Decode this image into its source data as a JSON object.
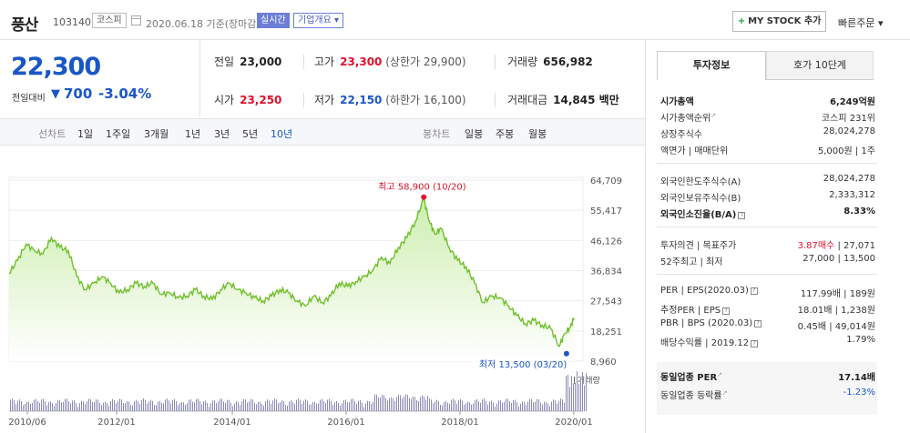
{
  "header": {
    "name": "풍산",
    "code": "103140",
    "market": "코스피",
    "date": "2020.06.18 기준(장마감)",
    "realtime": "실시간",
    "company_overview": "기업개요 ▾",
    "mystock": "MY STOCK 추가",
    "quick_order": "빠른주문 ▾"
  },
  "price": {
    "current": "22,300",
    "change_label": "전일대비",
    "change_arrow": "▼",
    "change": "700",
    "change_pct": "-3.04%"
  },
  "info": {
    "prev_label": "전일",
    "prev": "23,000",
    "high_label": "고가",
    "high": "23,300",
    "upper_limit": "(상한가 29,900)",
    "volume_label": "거래량",
    "volume": "656,982",
    "open_label": "시가",
    "open": "23,250",
    "low_label": "저가",
    "low": "22,150",
    "lower_limit": "(하한가 16,100)",
    "amount_label": "거래대금",
    "amount": "14,845 백만"
  },
  "period_bar": {
    "line_label": "선차트",
    "periods": [
      "1일",
      "1주일",
      "3개월",
      "1년",
      "3년",
      "5년",
      "10년"
    ],
    "active": "10년",
    "candle_label": "봉차트",
    "candles": [
      "일봉",
      "주봉",
      "월봉"
    ]
  },
  "side": {
    "tab_invest": "투자정보",
    "tab_orderbook": "호가 10단계",
    "rows1": [
      {
        "k": "시가총액",
        "v": "6,249억원"
      },
      {
        "k": "시가총액순위",
        "v": "코스피 231위"
      },
      {
        "k": "상장주식수",
        "v": "28,024,278"
      },
      {
        "k": "액면가 | 매매단위",
        "v": "5,000원 | 1주"
      }
    ],
    "rows2": [
      {
        "k": "외국인한도주식수(A)",
        "v": "28,024,278"
      },
      {
        "k": "외국인보유주식수(B)",
        "v": "2,333,312"
      },
      {
        "k": "외국인소진율(B/A)",
        "v": "8.33%"
      }
    ],
    "opinion_label": "투자의견 | 목표주가",
    "opinion_value": "3.87매수",
    "target_price": "| 27,071",
    "week52_label": "52주최고 | 최저",
    "week52_value": "27,000 | 13,500",
    "rows4": [
      {
        "k": "PER | EPS(2020.03)",
        "v": "117.99배 | 189원"
      },
      {
        "k": "추정PER | EPS",
        "v": "18.01배 | 1,238원"
      },
      {
        "k": "PBR | BPS (2020.03)",
        "v": "0.45배 | 49,014원"
      },
      {
        "k": "배당수익률 | 2019.12",
        "v": "1.79%"
      }
    ],
    "sector_per_label": "동일업종 PER",
    "sector_per": "17.14배",
    "sector_rate_label": "동일업종 등락률",
    "sector_rate": "-1.23%"
  },
  "chart_data": {
    "type": "area",
    "ylim": [
      8960,
      64709
    ],
    "yticks": [
      "64,709",
      "55,417",
      "46,126",
      "36,834",
      "27,543",
      "18,251",
      "8,960"
    ],
    "xticks": [
      "2010/06",
      "2012/01",
      "2014/01",
      "2016/01",
      "2018/01",
      "2020/01"
    ],
    "high_annotation": "최고 58,900 (10/20)",
    "low_annotation": "최저 13,500 (03/20)",
    "volume_label": "거래량",
    "colors": {
      "line": "#6fbf2a",
      "area_top": "#cdeeb0",
      "area_bottom": "#ffffff",
      "high": "#e0112b",
      "low": "#1a56c8",
      "volume": "#8b8bb8"
    },
    "series": [
      {
        "values": [
          [
            2010.45,
            36000
          ],
          [
            2010.6,
            40000
          ],
          [
            2010.75,
            45000
          ],
          [
            2010.9,
            43000
          ],
          [
            2011.05,
            42000
          ],
          [
            2011.2,
            47000
          ],
          [
            2011.35,
            44000
          ],
          [
            2011.5,
            43000
          ],
          [
            2011.65,
            35000
          ],
          [
            2011.8,
            31000
          ],
          [
            2011.95,
            33000
          ],
          [
            2012.1,
            35000
          ],
          [
            2012.25,
            33000
          ],
          [
            2012.4,
            30000
          ],
          [
            2012.55,
            31000
          ],
          [
            2012.7,
            33000
          ],
          [
            2012.85,
            32000
          ],
          [
            2013.0,
            33000
          ],
          [
            2013.15,
            29500
          ],
          [
            2013.3,
            30000
          ],
          [
            2013.45,
            28500
          ],
          [
            2013.6,
            29000
          ],
          [
            2013.75,
            31000
          ],
          [
            2013.9,
            29000
          ],
          [
            2014.05,
            28000
          ],
          [
            2014.2,
            31000
          ],
          [
            2014.35,
            33000
          ],
          [
            2014.5,
            31000
          ],
          [
            2014.65,
            30000
          ],
          [
            2014.8,
            28500
          ],
          [
            2014.95,
            27500
          ],
          [
            2015.1,
            29000
          ],
          [
            2015.25,
            31000
          ],
          [
            2015.4,
            30000
          ],
          [
            2015.55,
            27500
          ],
          [
            2015.7,
            26000
          ],
          [
            2015.85,
            29000
          ],
          [
            2016.0,
            27000
          ],
          [
            2016.15,
            29000
          ],
          [
            2016.3,
            33000
          ],
          [
            2016.45,
            32000
          ],
          [
            2016.6,
            33500
          ],
          [
            2016.75,
            35000
          ],
          [
            2016.9,
            37000
          ],
          [
            2017.05,
            41000
          ],
          [
            2017.2,
            39000
          ],
          [
            2017.35,
            44000
          ],
          [
            2017.5,
            47000
          ],
          [
            2017.65,
            52000
          ],
          [
            2017.8,
            58900
          ],
          [
            2017.9,
            52000
          ],
          [
            2018.0,
            48000
          ],
          [
            2018.1,
            50000
          ],
          [
            2018.25,
            44000
          ],
          [
            2018.4,
            40000
          ],
          [
            2018.55,
            38000
          ],
          [
            2018.7,
            33000
          ],
          [
            2018.85,
            27000
          ],
          [
            2019.0,
            29000
          ],
          [
            2019.15,
            28500
          ],
          [
            2019.3,
            26000
          ],
          [
            2019.45,
            23000
          ],
          [
            2019.6,
            20500
          ],
          [
            2019.75,
            21500
          ],
          [
            2019.9,
            20000
          ],
          [
            2020.05,
            19000
          ],
          [
            2020.2,
            13500
          ],
          [
            2020.3,
            17500
          ],
          [
            2020.4,
            19500
          ],
          [
            2020.46,
            22300
          ]
        ]
      }
    ]
  }
}
